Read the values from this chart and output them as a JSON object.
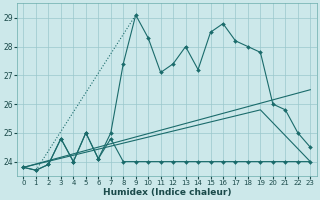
{
  "xlabel": "Humidex (Indice chaleur)",
  "xlim": [
    -0.5,
    23.5
  ],
  "ylim": [
    23.5,
    29.5
  ],
  "yticks": [
    24,
    25,
    26,
    27,
    28,
    29
  ],
  "xticks": [
    0,
    1,
    2,
    3,
    4,
    5,
    6,
    7,
    8,
    9,
    10,
    11,
    12,
    13,
    14,
    15,
    16,
    17,
    18,
    19,
    20,
    21,
    22,
    23
  ],
  "bg_color": "#cce8ea",
  "grid_color": "#9ac8cc",
  "line_color": "#1a6b6b",
  "series_jagged": {
    "x": [
      0,
      1,
      2,
      3,
      4,
      5,
      6,
      7,
      8,
      9,
      10,
      11,
      12,
      13,
      14,
      15,
      16,
      17,
      18,
      19,
      20,
      21,
      22,
      23
    ],
    "y": [
      23.8,
      23.7,
      23.9,
      24.8,
      24.0,
      25.0,
      24.1,
      25.0,
      27.4,
      29.1,
      28.3,
      27.1,
      27.4,
      28.0,
      27.2,
      28.5,
      28.8,
      28.2,
      28.0,
      27.8,
      26.0,
      25.8,
      25.0,
      24.5
    ]
  },
  "series_flat": {
    "x": [
      0,
      1,
      2,
      3,
      4,
      5,
      6,
      7,
      8,
      9,
      10,
      11,
      12,
      13,
      14,
      15,
      16,
      17,
      18,
      19,
      20,
      21,
      22,
      23
    ],
    "y": [
      23.8,
      23.7,
      23.9,
      24.8,
      24.0,
      25.0,
      24.1,
      24.8,
      24.0,
      24.0,
      24.0,
      24.0,
      24.0,
      24.0,
      24.0,
      24.0,
      24.0,
      24.0,
      24.0,
      24.0,
      24.0,
      24.0,
      24.0,
      24.0
    ]
  },
  "trend1": {
    "x": [
      0,
      19,
      23
    ],
    "y": [
      23.8,
      25.8,
      24.0
    ]
  },
  "trend2": {
    "x": [
      0,
      23
    ],
    "y": [
      23.8,
      26.5
    ]
  },
  "dotted": {
    "x": [
      1,
      9
    ],
    "y": [
      23.7,
      29.1
    ]
  }
}
